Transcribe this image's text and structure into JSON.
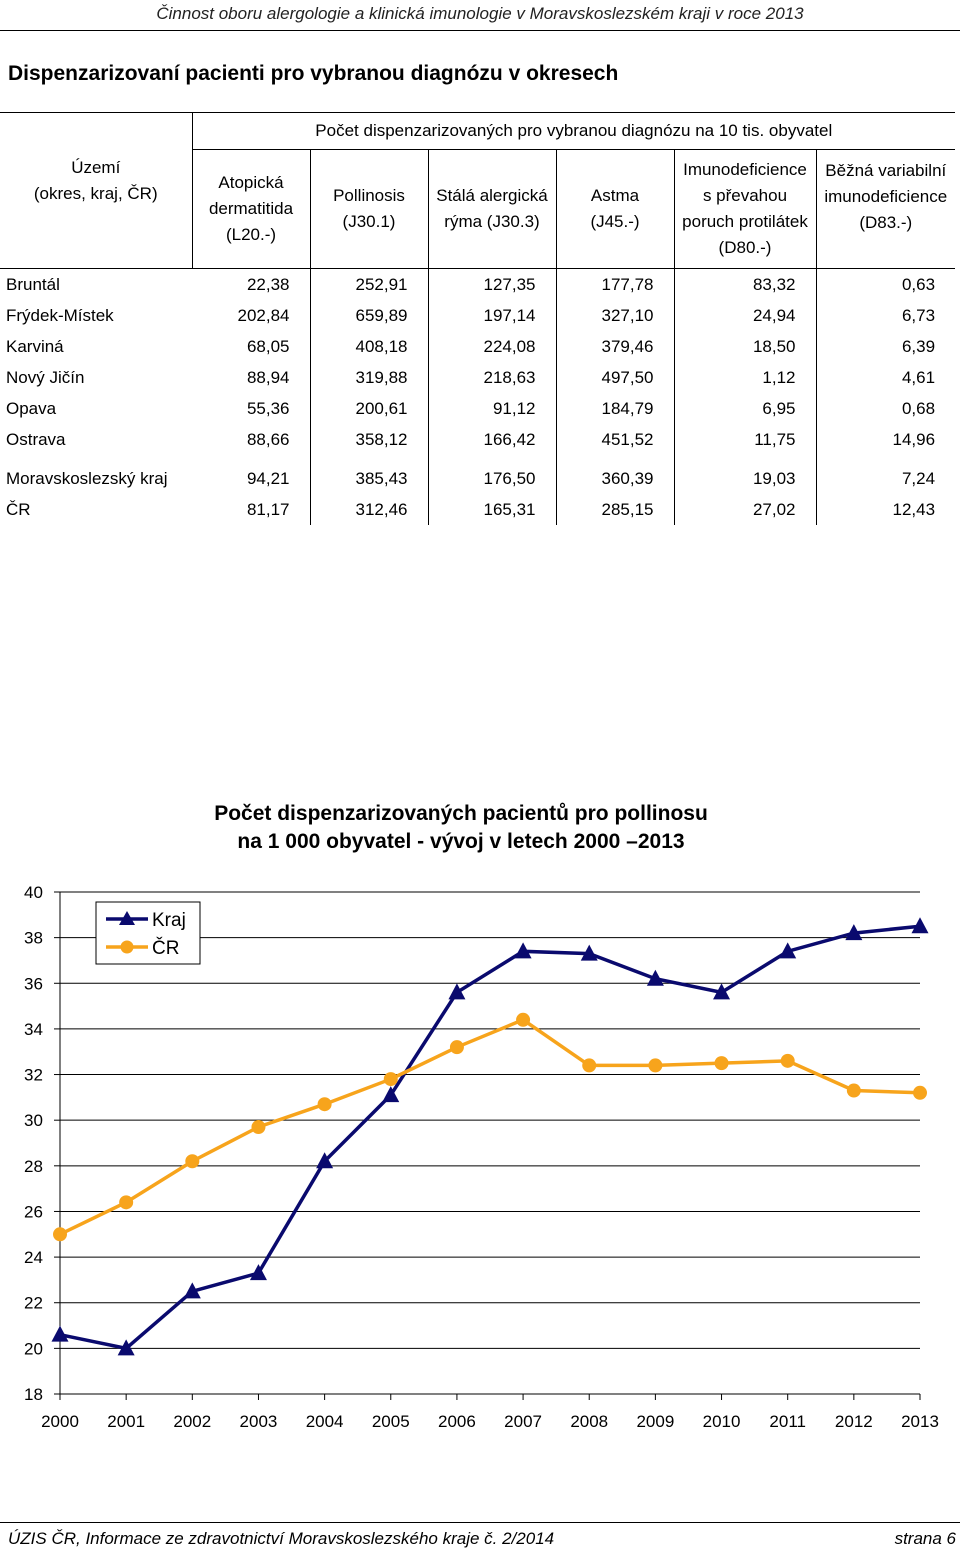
{
  "page": {
    "header": "Činnost oboru alergologie a klinická imunologie v Moravskoslezském kraji v roce 2013",
    "title": "Dispenzarizovaní pacienti pro vybranou diagnózu v okresech",
    "footer_left": "ÚZIS ČR, Informace ze zdravotnictví Moravskoslezského kraje č. 2/2014",
    "footer_right": "strana 6"
  },
  "table": {
    "territory_header": [
      "Území",
      "(okres, kraj, ČR)"
    ],
    "group_header": "Počet dispenzarizovaných pro vybranou diagnózu na 10 tis. obyvatel",
    "columns": [
      [
        "Atopická",
        "dermatitida",
        "(L20.-)"
      ],
      [
        "Pollinosis",
        "(J30.1)"
      ],
      [
        "Stálá alergická",
        "rýma (J30.3)"
      ],
      [
        "Astma",
        "(J45.-)"
      ],
      [
        "Imunodeficience",
        "s převahou",
        "poruch protilátek",
        "(D80.-)"
      ],
      [
        "Běžná variabilní",
        "imunodeficience",
        "(D83.-)"
      ]
    ],
    "rows": [
      {
        "name": "Bruntál",
        "values": [
          "22,38",
          "252,91",
          "127,35",
          "177,78",
          "83,32",
          "0,63"
        ]
      },
      {
        "name": "Frýdek-Místek",
        "values": [
          "202,84",
          "659,89",
          "197,14",
          "327,10",
          "24,94",
          "6,73"
        ]
      },
      {
        "name": "Karviná",
        "values": [
          "68,05",
          "408,18",
          "224,08",
          "379,46",
          "18,50",
          "6,39"
        ]
      },
      {
        "name": "Nový Jičín",
        "values": [
          "88,94",
          "319,88",
          "218,63",
          "497,50",
          "1,12",
          "4,61"
        ]
      },
      {
        "name": "Opava",
        "values": [
          "55,36",
          "200,61",
          "91,12",
          "184,79",
          "6,95",
          "0,68"
        ]
      },
      {
        "name": "Ostrava",
        "values": [
          "88,66",
          "358,12",
          "166,42",
          "451,52",
          "11,75",
          "14,96"
        ]
      }
    ],
    "summary_rows": [
      {
        "name": "Moravskoslezský kraj",
        "values": [
          "94,21",
          "385,43",
          "176,50",
          "360,39",
          "19,03",
          "7,24"
        ]
      },
      {
        "name": "ČR",
        "values": [
          "81,17",
          "312,46",
          "165,31",
          "285,15",
          "27,02",
          "12,43"
        ]
      }
    ]
  },
  "chart_data": {
    "type": "line",
    "title_lines": [
      "Počet dispenzarizovaných pacientů pro pollinosu",
      "na 1 000 obyvatel - vývoj v letech 2000 2013"
    ],
    "title_prefix": "Počet dispenzarizovaných pacientů pro pollinosu",
    "title_line2_a": "na 1 000 obyvatel - vývoj v letech 2000",
    "title_line2_dash": "–",
    "title_line2_b": "2013",
    "categories": [
      "2000",
      "2001",
      "2002",
      "2003",
      "2004",
      "2005",
      "2006",
      "2007",
      "2008",
      "2009",
      "2010",
      "2011",
      "2012",
      "2013"
    ],
    "ylim": [
      18,
      40
    ],
    "yticks": [
      "18",
      "20",
      "22",
      "24",
      "26",
      "28",
      "30",
      "32",
      "34",
      "36",
      "38",
      "40"
    ],
    "grid": true,
    "legend_position": "top-left",
    "series": [
      {
        "name": "Kraj",
        "color": "#0a0a6e",
        "marker": "triangle",
        "values": [
          20.6,
          20.0,
          22.5,
          23.3,
          28.2,
          31.1,
          35.6,
          37.4,
          37.3,
          36.2,
          35.6,
          37.4,
          38.2,
          38.5
        ]
      },
      {
        "name": "ČR",
        "color": "#f7a41c",
        "marker": "circle",
        "values": [
          25.0,
          26.4,
          28.2,
          29.7,
          30.7,
          31.8,
          33.2,
          34.4,
          32.4,
          32.4,
          32.5,
          32.6,
          31.3,
          31.2
        ]
      }
    ]
  }
}
